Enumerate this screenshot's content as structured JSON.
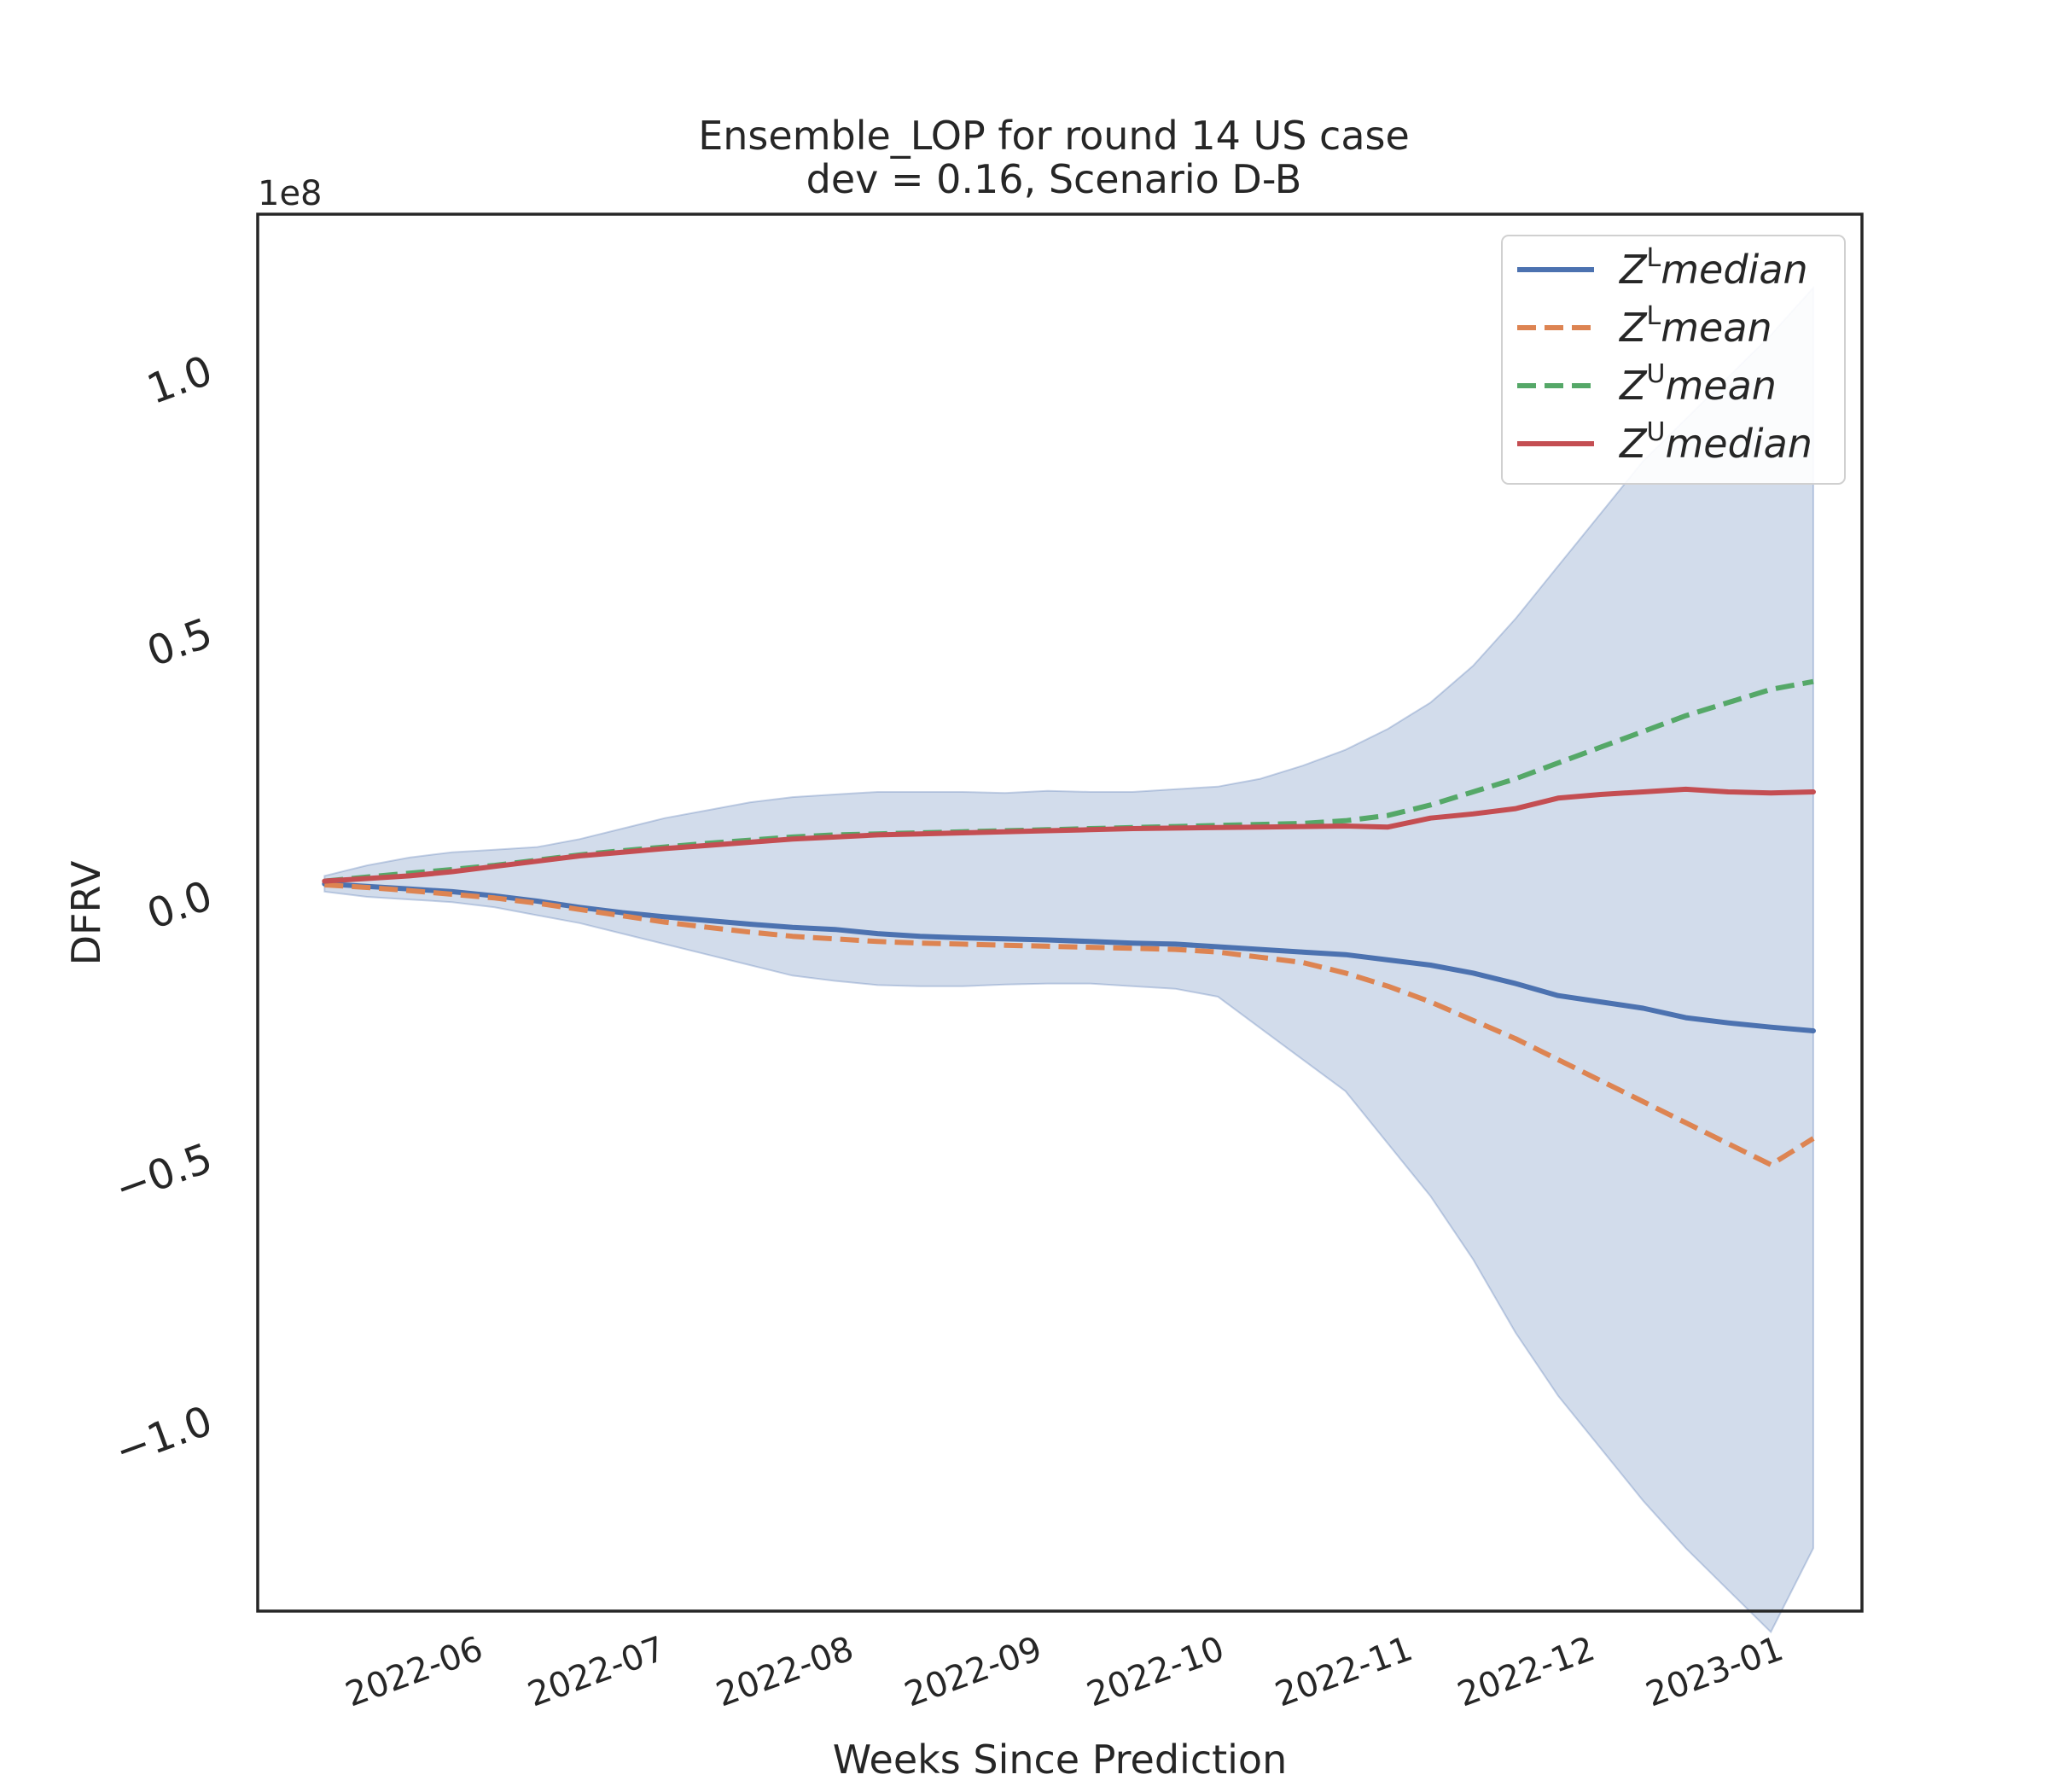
{
  "chart_data": {
    "type": "line",
    "title": "Ensemble_LOP for round 14 US case",
    "subtitle": "dev = 0.16, Scenario D-B",
    "xlabel": "Weeks Since Prediction",
    "ylabel": "DFRV",
    "y_offset_label": "1e8",
    "y_scale": 100000000,
    "x_tick_labels": [
      "2022-06",
      "2022-07",
      "2022-08",
      "2022-09",
      "2022-10",
      "2022-11",
      "2022-12",
      "2023-01"
    ],
    "x_tick_dates": [
      "2022-06-01",
      "2022-07-01",
      "2022-08-01",
      "2022-09-01",
      "2022-10-01",
      "2022-11-01",
      "2022-12-01",
      "2023-01-01"
    ],
    "y_ticks": [
      -1.0,
      -0.5,
      0.0,
      0.5,
      1.0
    ],
    "y_tick_labels": [
      "−1.0",
      "−0.5",
      "0.0",
      "0.5",
      "1.0"
    ],
    "xlim": [
      "2022-04-26",
      "2023-01-15"
    ],
    "ylim": [
      -1.37,
      1.29
    ],
    "grid": false,
    "legend_position": "top-right",
    "x": [
      "2022-05-07",
      "2022-05-14",
      "2022-05-21",
      "2022-05-28",
      "2022-06-04",
      "2022-06-11",
      "2022-06-18",
      "2022-06-25",
      "2022-07-02",
      "2022-07-09",
      "2022-07-16",
      "2022-07-23",
      "2022-07-30",
      "2022-08-06",
      "2022-08-13",
      "2022-08-20",
      "2022-08-27",
      "2022-09-03",
      "2022-09-10",
      "2022-09-17",
      "2022-09-24",
      "2022-10-01",
      "2022-10-08",
      "2022-10-15",
      "2022-10-22",
      "2022-10-29",
      "2022-11-05",
      "2022-11-12",
      "2022-11-19",
      "2022-11-26",
      "2022-12-03",
      "2022-12-10",
      "2022-12-17",
      "2022-12-24",
      "2022-12-31",
      "2023-01-07"
    ],
    "band": {
      "upper": [
        0.03,
        0.05,
        0.065,
        0.075,
        0.08,
        0.085,
        0.1,
        0.12,
        0.14,
        0.155,
        0.17,
        0.18,
        0.185,
        0.19,
        0.19,
        0.19,
        0.188,
        0.192,
        0.19,
        0.19,
        0.195,
        0.2,
        0.215,
        0.24,
        0.27,
        0.31,
        0.36,
        0.43,
        0.52,
        0.62,
        0.72,
        0.82,
        0.9,
        0.98,
        1.06,
        1.15
      ],
      "lower": [
        0.0,
        -0.01,
        -0.015,
        -0.02,
        -0.03,
        -0.045,
        -0.06,
        -0.08,
        -0.1,
        -0.12,
        -0.14,
        -0.16,
        -0.17,
        -0.178,
        -0.18,
        -0.18,
        -0.177,
        -0.175,
        -0.175,
        -0.18,
        -0.185,
        -0.2,
        -0.26,
        -0.32,
        -0.38,
        -0.48,
        -0.58,
        -0.7,
        -0.84,
        -0.96,
        -1.06,
        -1.16,
        -1.25,
        -1.33,
        -1.41,
        -1.25
      ],
      "color": "#4c72b0"
    },
    "series": [
      {
        "name": "Z^L median",
        "name_base": "Z",
        "name_sup": "L",
        "name_rest": "median",
        "style": "solid",
        "color": "#4c72b0",
        "values": [
          0.015,
          0.01,
          0.005,
          0.0,
          -0.008,
          -0.018,
          -0.03,
          -0.04,
          -0.048,
          -0.055,
          -0.062,
          -0.068,
          -0.072,
          -0.08,
          -0.085,
          -0.088,
          -0.09,
          -0.092,
          -0.095,
          -0.098,
          -0.1,
          -0.105,
          -0.11,
          -0.115,
          -0.12,
          -0.13,
          -0.14,
          -0.155,
          -0.175,
          -0.198,
          -0.21,
          -0.222,
          -0.24,
          -0.25,
          -0.258,
          -0.265
        ]
      },
      {
        "name": "Z^L mean",
        "name_base": "Z",
        "name_sup": "L",
        "name_rest": "mean",
        "style": "dashed",
        "color": "#dd8452",
        "values": [
          0.013,
          0.008,
          0.002,
          -0.005,
          -0.012,
          -0.022,
          -0.034,
          -0.046,
          -0.058,
          -0.068,
          -0.077,
          -0.085,
          -0.09,
          -0.095,
          -0.098,
          -0.1,
          -0.102,
          -0.104,
          -0.106,
          -0.108,
          -0.11,
          -0.115,
          -0.125,
          -0.135,
          -0.155,
          -0.18,
          -0.21,
          -0.245,
          -0.28,
          -0.32,
          -0.36,
          -0.4,
          -0.44,
          -0.48,
          -0.52,
          -0.47
        ]
      },
      {
        "name": "Z^U mean",
        "name_base": "Z",
        "name_sup": "U",
        "name_rest": "mean",
        "style": "dashed",
        "color": "#55a868",
        "values": [
          0.02,
          0.028,
          0.035,
          0.042,
          0.05,
          0.06,
          0.07,
          0.078,
          0.085,
          0.092,
          0.098,
          0.104,
          0.108,
          0.11,
          0.112,
          0.114,
          0.116,
          0.118,
          0.12,
          0.122,
          0.124,
          0.126,
          0.128,
          0.13,
          0.135,
          0.145,
          0.165,
          0.19,
          0.215,
          0.245,
          0.275,
          0.305,
          0.335,
          0.36,
          0.385,
          0.4
        ]
      },
      {
        "name": "Z^U median",
        "name_base": "Z",
        "name_sup": "U",
        "name_rest": "median",
        "style": "solid",
        "color": "#c44e52",
        "values": [
          0.02,
          0.025,
          0.03,
          0.038,
          0.048,
          0.058,
          0.068,
          0.075,
          0.082,
          0.088,
          0.094,
          0.1,
          0.104,
          0.108,
          0.11,
          0.112,
          0.114,
          0.116,
          0.118,
          0.12,
          0.121,
          0.122,
          0.123,
          0.124,
          0.125,
          0.123,
          0.14,
          0.148,
          0.158,
          0.178,
          0.185,
          0.19,
          0.195,
          0.19,
          0.188,
          0.19
        ]
      }
    ]
  }
}
